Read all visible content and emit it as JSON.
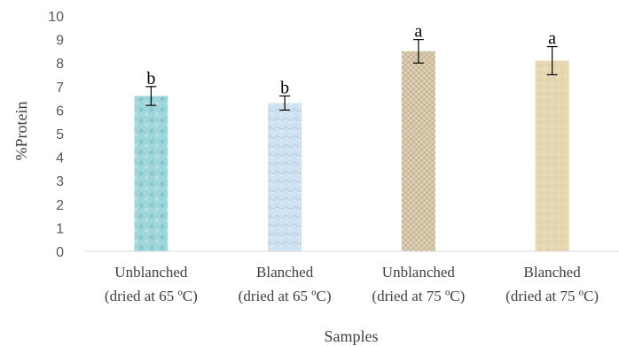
{
  "chart_data": {
    "type": "bar",
    "categories": [
      [
        "Unblanched",
        "(dried at 65 ºC)"
      ],
      [
        "Blanched",
        "(dried at 65 ºC)"
      ],
      [
        "Unblanched",
        "(dried at 75 ºC)"
      ],
      [
        "Blanched",
        "(dried at 75 ºC)"
      ]
    ],
    "values": [
      6.6,
      6.3,
      8.5,
      8.1
    ],
    "error": [
      0.4,
      0.3,
      0.5,
      0.6
    ],
    "significance": [
      "b",
      "b",
      "a",
      "a"
    ],
    "xlabel": "Samples",
    "ylabel": "%Protein",
    "ylim": [
      0,
      10
    ],
    "yticks": [
      0,
      1,
      2,
      3,
      4,
      5,
      6,
      7,
      8,
      9,
      10
    ],
    "grid": false,
    "colors": [
      "#9fd6dc",
      "#cfe2f1",
      "#d6c8ad",
      "#e6d8b2"
    ]
  }
}
